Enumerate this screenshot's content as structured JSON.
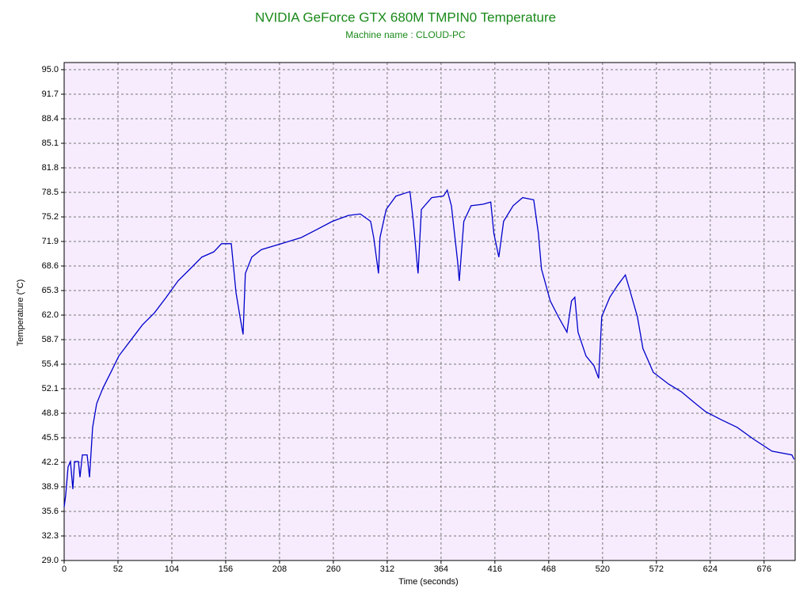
{
  "chart_data": {
    "type": "line",
    "title": "NVIDIA GeForce GTX 680M TMPIN0 Temperature",
    "subtitle": "Machine name : CLOUD-PC",
    "x_label": "Time (seconds)",
    "y_label": "Temperature (°C)",
    "x": [
      0,
      1.5,
      3.8,
      6.1,
      8.4,
      10,
      13.8,
      15.3,
      17.6,
      22.2,
      24.5,
      27.5,
      31.4,
      37.5,
      45.1,
      52.8,
      64.2,
      75.7,
      87.2,
      98.6,
      110,
      121.6,
      133,
      144.5,
      152,
      161.4,
      166,
      169.8,
      172.8,
      175,
      181.2,
      190.4,
      209.5,
      228.6,
      244,
      259,
      274.5,
      286,
      296,
      299,
      303.6,
      305,
      311,
      320.4,
      334,
      337.2,
      341.8,
      345,
      355,
      366.3,
      370,
      374,
      380,
      381.6,
      386,
      393,
      404.5,
      412,
      415,
      419.8,
      424.4,
      433.6,
      442.8,
      453.5,
      458,
      461,
      469.5,
      477.2,
      485.6,
      490,
      493.2,
      496.3,
      504,
      511.6,
      516.2,
      519.2,
      527,
      534.5,
      542,
      546,
      553.6,
      559,
      569,
      584,
      596,
      608,
      619.6,
      635,
      650,
      666,
      683.6,
      702.8,
      705
    ],
    "series": [
      {
        "name": "TMPIN0",
        "color": "#0000cc",
        "values": [
          36.2,
          37.8,
          41.6,
          42.3,
          38.6,
          42.3,
          42.3,
          40.2,
          43.2,
          43.2,
          40.2,
          46.9,
          50.1,
          52.2,
          54.3,
          56.5,
          58.6,
          60.7,
          62.3,
          64.4,
          66.6,
          68.2,
          69.8,
          70.5,
          71.6,
          71.6,
          65.0,
          61.8,
          59.4,
          67.6,
          69.8,
          70.8,
          71.6,
          72.4,
          73.5,
          74.6,
          75.4,
          75.6,
          74.6,
          72.4,
          67.6,
          72.4,
          76.2,
          78.0,
          78.6,
          74.6,
          67.6,
          76.2,
          77.8,
          78.0,
          78.8,
          76.7,
          69.2,
          66.6,
          74.6,
          76.7,
          76.9,
          77.2,
          73.0,
          69.8,
          74.6,
          76.7,
          77.8,
          77.5,
          73.0,
          68.2,
          63.9,
          61.8,
          59.7,
          63.9,
          64.4,
          59.7,
          56.5,
          55.2,
          53.5,
          61.8,
          64.4,
          66.0,
          67.4,
          65.5,
          61.8,
          57.5,
          54.3,
          52.7,
          51.7,
          50.3,
          49.0,
          47.9,
          46.9,
          45.3,
          43.7,
          43.2,
          42.6
        ]
      }
    ],
    "xlim": [
      0,
      706
    ],
    "ylim": [
      29,
      95
    ],
    "xticks": [
      0,
      52,
      104,
      156,
      208,
      260,
      312,
      364,
      416,
      468,
      520,
      572,
      624,
      676
    ],
    "yticks": [
      {
        "value": 29,
        "label": "29.0"
      },
      32.3,
      35.6,
      38.9,
      42.2,
      45.5,
      48.8,
      52.1,
      55.4,
      58.7,
      {
        "value": 62,
        "label": "62.0"
      },
      65.3,
      68.6,
      71.9,
      75.2,
      78.5,
      81.8,
      85.1,
      88.4,
      91.7,
      {
        "value": 95,
        "label": "95.0"
      }
    ],
    "grid": true,
    "plot_background": "#f6ecfd"
  }
}
